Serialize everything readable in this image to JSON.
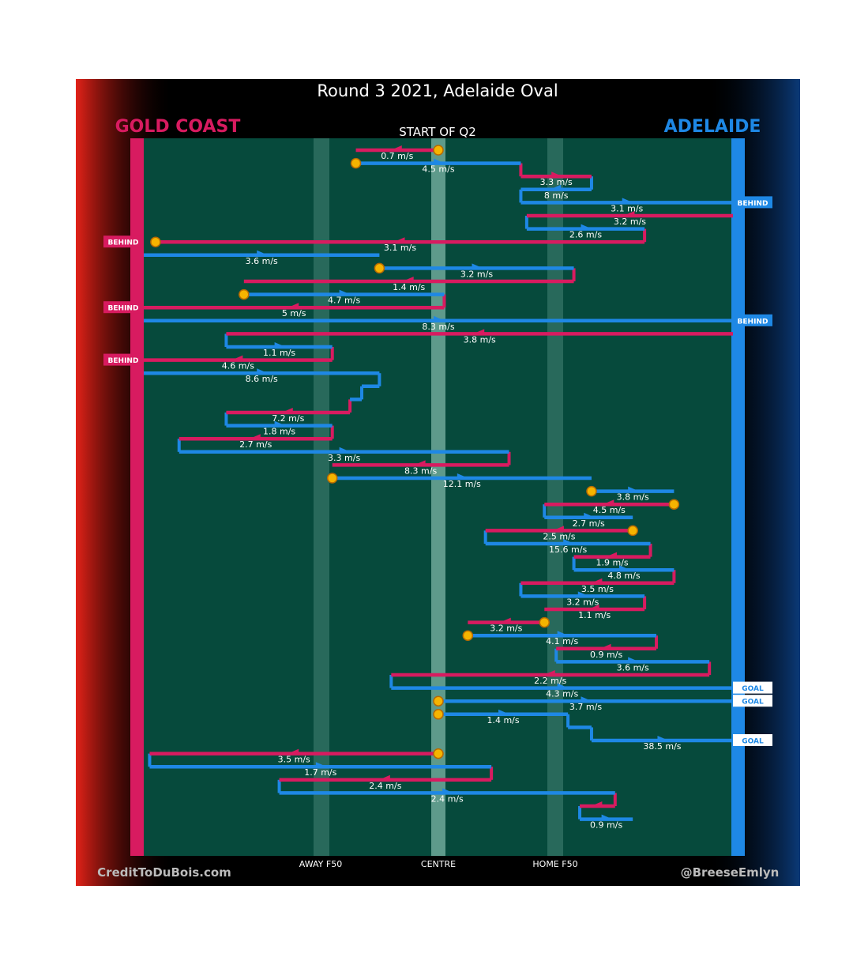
{
  "chart_data": {
    "type": "line",
    "title": "Round 3 2021, Adelaide Oval",
    "subtitle": "START OF Q2",
    "teams": {
      "away": "GOLD COAST",
      "home": "ADELAIDE"
    },
    "colors": {
      "away": "#d81b60",
      "home": "#1e88e5"
    },
    "x_ticks": [
      "AWAY F50",
      "CENTRE",
      "HOME F50"
    ],
    "credit_left": "CreditToDuBois.com",
    "credit_right": "@BreeseEmlyn",
    "x_unit": "position from Gold Coast goal (0) to Adelaide goal (1)",
    "segments": [
      {
        "team": "away",
        "from": 0.5,
        "to": 0.36,
        "speed": "0.7 m/s",
        "start": "turnover"
      },
      {
        "team": "home",
        "from": 0.36,
        "to": 0.64,
        "speed": "4.5 m/s",
        "start": "turnover"
      },
      {
        "team": "away",
        "from": 0.64,
        "to": 0.76,
        "speed": "3.3 m/s"
      },
      {
        "team": "home",
        "from": 0.76,
        "to": 0.64,
        "speed": "8 m/s"
      },
      {
        "team": "home",
        "from": 0.64,
        "to": 1.0,
        "speed": "3.1 m/s",
        "end": "BEHIND"
      },
      {
        "team": "away",
        "from": 1.0,
        "to": 0.65,
        "speed": "3.2 m/s"
      },
      {
        "team": "home",
        "from": 0.65,
        "to": 0.85,
        "speed": "2.6 m/s"
      },
      {
        "team": "away",
        "from": 0.85,
        "to": 0.02,
        "speed": "3.1 m/s",
        "end": "BEHIND",
        "end_marker": true
      },
      {
        "team": "home",
        "from": 0.0,
        "to": 0.4,
        "speed": "3.6 m/s"
      },
      {
        "team": "home",
        "from": 0.4,
        "to": 0.73,
        "speed": "3.2 m/s",
        "start": "turnover"
      },
      {
        "team": "away",
        "from": 0.73,
        "to": 0.17,
        "speed": "1.4 m/s"
      },
      {
        "team": "home",
        "from": 0.17,
        "to": 0.51,
        "speed": "4.7 m/s",
        "start": "turnover"
      },
      {
        "team": "away",
        "from": 0.51,
        "to": 0.0,
        "speed": "5 m/s",
        "end": "BEHIND"
      },
      {
        "team": "home",
        "from": 0.0,
        "to": 1.0,
        "speed": "8.3 m/s",
        "end": "BEHIND"
      },
      {
        "team": "away",
        "from": 1.0,
        "to": 0.14,
        "speed": "3.8 m/s"
      },
      {
        "team": "home",
        "from": 0.14,
        "to": 0.32,
        "speed": "1.1 m/s"
      },
      {
        "team": "away",
        "from": 0.32,
        "to": 0.0,
        "speed": "4.6 m/s",
        "end": "BEHIND"
      },
      {
        "team": "home",
        "from": 0.0,
        "to": 0.4,
        "speed": "8.6 m/s"
      },
      {
        "team": "home",
        "from": 0.4,
        "to": 0.37,
        "speed": ""
      },
      {
        "team": "home",
        "from": 0.37,
        "to": 0.35,
        "speed": ""
      },
      {
        "team": "away",
        "from": 0.35,
        "to": 0.14,
        "speed": "7.2 m/s"
      },
      {
        "team": "home",
        "from": 0.14,
        "to": 0.32,
        "speed": "1.8 m/s"
      },
      {
        "team": "away",
        "from": 0.32,
        "to": 0.06,
        "speed": "2.7 m/s"
      },
      {
        "team": "home",
        "from": 0.06,
        "to": 0.62,
        "speed": "3.3 m/s"
      },
      {
        "team": "away",
        "from": 0.62,
        "to": 0.32,
        "speed": "8.3 m/s"
      },
      {
        "team": "home",
        "from": 0.32,
        "to": 0.76,
        "speed": "12.1 m/s",
        "start": "turnover"
      },
      {
        "team": "home",
        "from": 0.76,
        "to": 0.9,
        "speed": "3.8 m/s",
        "start": "turnover"
      },
      {
        "team": "away",
        "from": 0.9,
        "to": 0.68,
        "speed": "4.5 m/s",
        "start": "turnover"
      },
      {
        "team": "home",
        "from": 0.68,
        "to": 0.83,
        "speed": "2.7 m/s"
      },
      {
        "team": "away",
        "from": 0.83,
        "to": 0.58,
        "speed": "2.5 m/s",
        "start": "turnover"
      },
      {
        "team": "home",
        "from": 0.58,
        "to": 0.86,
        "speed": "15.6 m/s"
      },
      {
        "team": "away",
        "from": 0.86,
        "to": 0.73,
        "speed": "1.9 m/s"
      },
      {
        "team": "home",
        "from": 0.73,
        "to": 0.9,
        "speed": "4.8 m/s"
      },
      {
        "team": "away",
        "from": 0.9,
        "to": 0.64,
        "speed": "3.5 m/s"
      },
      {
        "team": "home",
        "from": 0.64,
        "to": 0.85,
        "speed": "3.2 m/s"
      },
      {
        "team": "away",
        "from": 0.85,
        "to": 0.68,
        "speed": "1.1 m/s"
      },
      {
        "team": "away",
        "from": 0.68,
        "to": 0.55,
        "speed": "3.2 m/s",
        "start": "turnover"
      },
      {
        "team": "home",
        "from": 0.55,
        "to": 0.87,
        "speed": "4.1 m/s",
        "start": "turnover"
      },
      {
        "team": "away",
        "from": 0.87,
        "to": 0.7,
        "speed": "0.9 m/s"
      },
      {
        "team": "home",
        "from": 0.7,
        "to": 0.96,
        "speed": "3.6 m/s"
      },
      {
        "team": "away",
        "from": 0.96,
        "to": 0.42,
        "speed": "2.2 m/s"
      },
      {
        "team": "home",
        "from": 0.42,
        "to": 1.0,
        "speed": "4.3 m/s",
        "end": "GOAL"
      },
      {
        "team": "home",
        "from": 0.5,
        "to": 1.0,
        "speed": "3.7 m/s",
        "start": "turnover",
        "end": "GOAL"
      },
      {
        "team": "home",
        "from": 0.5,
        "to": 0.72,
        "speed": "1.4 m/s",
        "start": "turnover"
      },
      {
        "team": "home",
        "from": 0.72,
        "to": 0.76,
        "speed": ""
      },
      {
        "team": "home",
        "from": 0.76,
        "to": 1.0,
        "speed": "38.5 m/s",
        "end": "GOAL"
      },
      {
        "team": "away",
        "from": 0.5,
        "to": 0.01,
        "speed": "3.5 m/s",
        "start": "turnover"
      },
      {
        "team": "home",
        "from": 0.01,
        "to": 0.59,
        "speed": "1.7 m/s"
      },
      {
        "team": "away",
        "from": 0.59,
        "to": 0.23,
        "speed": "2.4 m/s"
      },
      {
        "team": "home",
        "from": 0.23,
        "to": 0.8,
        "speed": "2.4 m/s"
      },
      {
        "team": "away",
        "from": 0.8,
        "to": 0.74,
        "speed": ""
      },
      {
        "team": "home",
        "from": 0.74,
        "to": 0.83,
        "speed": "0.9 m/s"
      }
    ]
  }
}
